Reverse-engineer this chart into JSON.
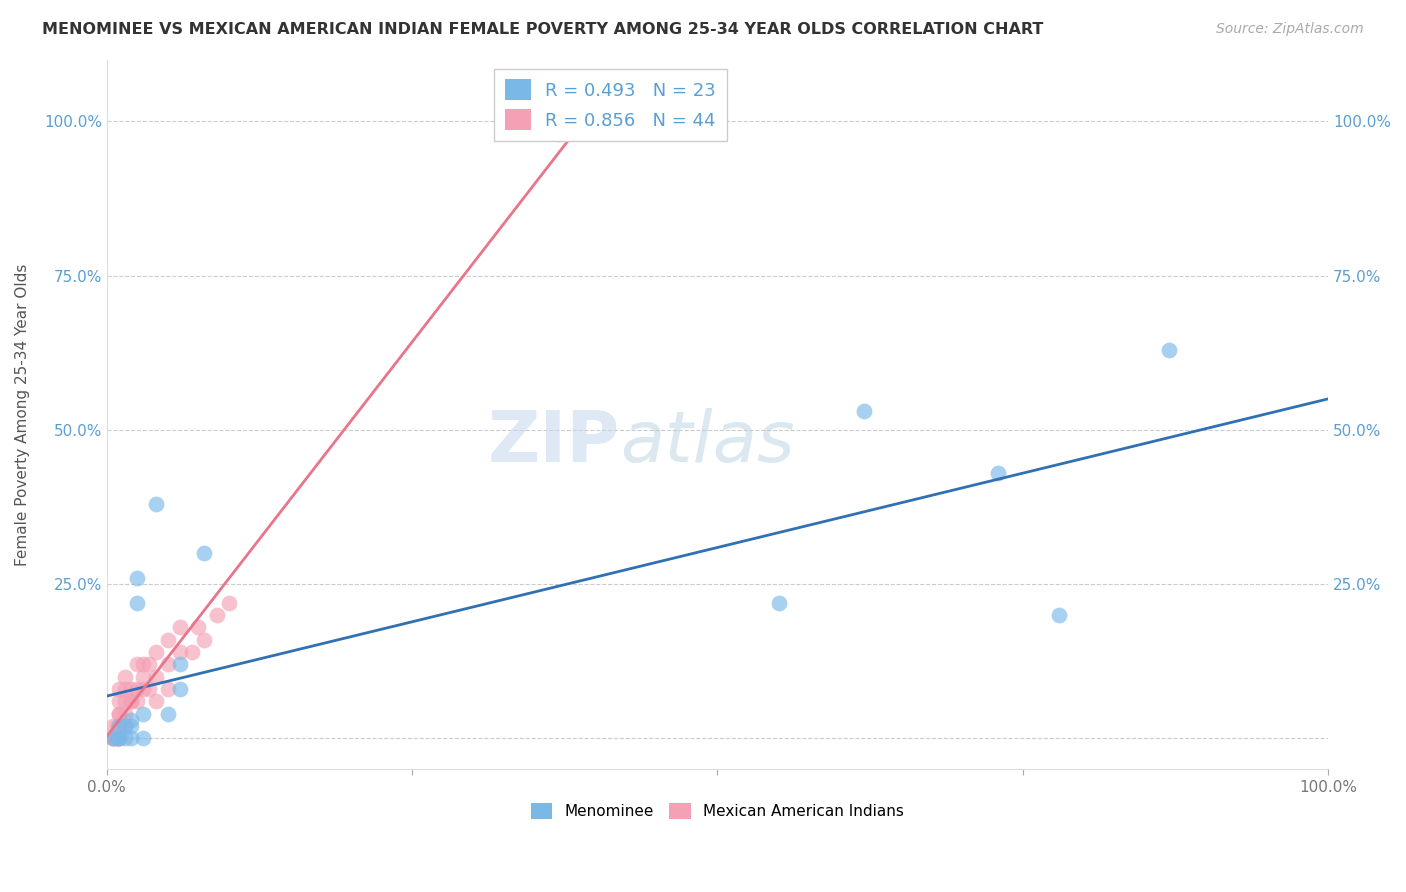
{
  "title": "MENOMINEE VS MEXICAN AMERICAN INDIAN FEMALE POVERTY AMONG 25-34 YEAR OLDS CORRELATION CHART",
  "source": "Source: ZipAtlas.com",
  "ylabel": "Female Poverty Among 25-34 Year Olds",
  "xlim": [
    0,
    1.0
  ],
  "ylim": [
    -0.05,
    1.1
  ],
  "x_tick_positions": [
    0,
    0.25,
    0.5,
    0.75,
    1.0
  ],
  "x_tick_labels": [
    "0.0%",
    "",
    "",
    "",
    "100.0%"
  ],
  "y_tick_positions": [
    0.0,
    0.25,
    0.5,
    0.75,
    1.0
  ],
  "y_tick_labels": [
    "",
    "25.0%",
    "50.0%",
    "75.0%",
    "100.0%"
  ],
  "menominee_R": 0.493,
  "menominee_N": 23,
  "mexican_R": 0.856,
  "mexican_N": 44,
  "menominee_color": "#7ab8e8",
  "mexican_color": "#f4a0b5",
  "trendline_menominee_color": "#3070b3",
  "trendline_mexican_color": "#e8758a",
  "legend_label_1": "Menominee",
  "legend_label_2": "Mexican American Indians",
  "watermark_zip": "ZIP",
  "watermark_atlas": "atlas",
  "menominee_x": [
    0.005,
    0.008,
    0.01,
    0.01,
    0.015,
    0.015,
    0.02,
    0.02,
    0.02,
    0.025,
    0.025,
    0.03,
    0.03,
    0.04,
    0.05,
    0.06,
    0.06,
    0.08,
    0.55,
    0.62,
    0.73,
    0.78,
    0.87
  ],
  "menominee_y": [
    0.0,
    0.0,
    0.0,
    0.02,
    0.0,
    0.02,
    0.0,
    0.02,
    0.03,
    0.22,
    0.26,
    0.0,
    0.04,
    0.38,
    0.04,
    0.08,
    0.12,
    0.3,
    0.22,
    0.53,
    0.43,
    0.2,
    0.63
  ],
  "mexican_x": [
    0.005,
    0.005,
    0.005,
    0.005,
    0.008,
    0.008,
    0.008,
    0.01,
    0.01,
    0.01,
    0.01,
    0.01,
    0.01,
    0.01,
    0.015,
    0.015,
    0.015,
    0.015,
    0.015,
    0.02,
    0.02,
    0.02,
    0.025,
    0.025,
    0.025,
    0.03,
    0.03,
    0.03,
    0.035,
    0.035,
    0.04,
    0.04,
    0.04,
    0.05,
    0.05,
    0.05,
    0.06,
    0.06,
    0.07,
    0.075,
    0.08,
    0.09,
    0.1,
    0.37
  ],
  "mexican_y": [
    0.0,
    0.0,
    0.0,
    0.02,
    0.0,
    0.0,
    0.02,
    0.0,
    0.0,
    0.02,
    0.04,
    0.04,
    0.06,
    0.08,
    0.02,
    0.04,
    0.06,
    0.08,
    0.1,
    0.06,
    0.06,
    0.08,
    0.06,
    0.08,
    0.12,
    0.08,
    0.1,
    0.12,
    0.08,
    0.12,
    0.06,
    0.1,
    0.14,
    0.08,
    0.12,
    0.16,
    0.14,
    0.18,
    0.14,
    0.18,
    0.16,
    0.2,
    0.22,
    0.98
  ]
}
